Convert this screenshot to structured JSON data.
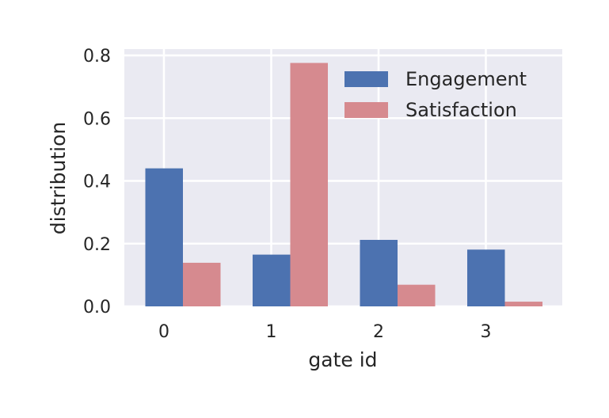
{
  "chart_data": {
    "type": "bar",
    "categories": [
      "0",
      "1",
      "2",
      "3"
    ],
    "series": [
      {
        "name": "Engagement",
        "values": [
          0.44,
          0.165,
          0.212,
          0.181
        ],
        "color": "#4c72b0"
      },
      {
        "name": "Satisfaction",
        "values": [
          0.139,
          0.776,
          0.069,
          0.015
        ],
        "color": "#d68a8f"
      }
    ],
    "xlabel": "gate id",
    "ylabel": "distribution",
    "ylim": [
      0,
      0.8
    ],
    "yticks": [
      "0.0",
      "0.2",
      "0.4",
      "0.6",
      "0.8"
    ],
    "grid": true,
    "background": "#eaeaf2",
    "legend_position": "top-right"
  }
}
